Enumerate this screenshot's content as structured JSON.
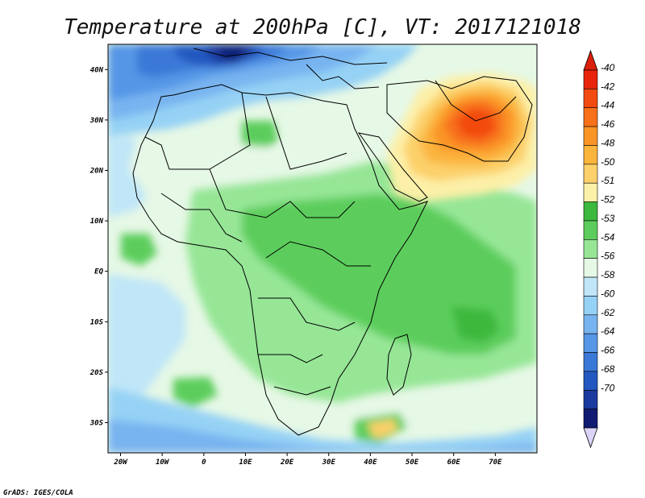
{
  "title": "Temperature at 200hPa [C], VT: 2017121018",
  "footer": "GrADS: IGES/COLA",
  "map": {
    "lon_range": [
      -23,
      80
    ],
    "lat_range": [
      -36,
      45
    ],
    "lon_ticks": [
      "20W",
      "10W",
      "0",
      "10E",
      "20E",
      "30E",
      "40E",
      "50E",
      "60E",
      "70E"
    ],
    "lat_ticks": [
      "40N",
      "30N",
      "20N",
      "10N",
      "EQ",
      "10S",
      "20S",
      "30S"
    ]
  },
  "colorbar": {
    "labels": [
      "-40",
      "-42",
      "-44",
      "-46",
      "-48",
      "-50",
      "-51",
      "-52",
      "-53",
      "-54",
      "-56",
      "-58",
      "-60",
      "-62",
      "-64",
      "-66",
      "-68",
      "-70"
    ],
    "colors": [
      "#e8240c",
      "#f24a10",
      "#f7701a",
      "#fa9426",
      "#fbb43c",
      "#fcd06a",
      "#fdf0a8",
      "#3cb83c",
      "#5ccd5c",
      "#96e696",
      "#e6f8e6",
      "#c0e6f8",
      "#96d2f5",
      "#78b4f0",
      "#5596e6",
      "#3a78d7",
      "#2358c0",
      "#1a3a9e",
      "#111b72"
    ],
    "top_arrow_color": "#dc1f0b",
    "bottom_arrow_color": "#dcd4f8"
  }
}
